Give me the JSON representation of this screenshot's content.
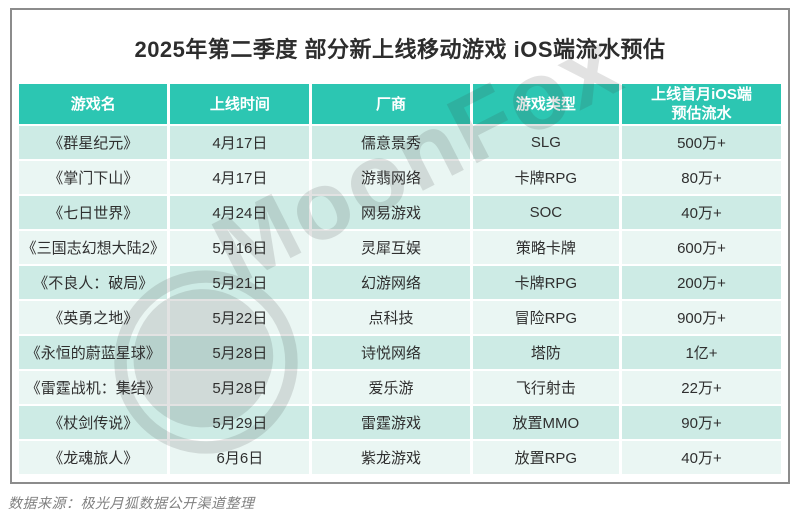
{
  "title": "2025年第二季度 部分新上线移动游戏 iOS端流水预估",
  "source_note": "数据来源：极光月狐数据公开渠道整理",
  "watermark": {
    "brand_text": "MoonFox",
    "logo": "moonfox-moon-logo"
  },
  "colors": {
    "header_bg": "#2cc6b2",
    "row_odd_bg": "#cdebe5",
    "row_even_bg": "#eaf6f3",
    "header_text": "#ffffff",
    "cell_text": "#2f2f2f",
    "card_border": "#8c8c8c",
    "watermark_gray": "#3a3a3a",
    "source_text": "#808080"
  },
  "chart_data": {
    "type": "table",
    "title": "2025年第二季度 部分新上线移动游戏 iOS端流水预估",
    "columns": [
      "游戏名",
      "上线时间",
      "厂商",
      "游戏类型",
      "上线首月iOS端预估流水"
    ],
    "column_headers_display": [
      "游戏名",
      "上线时间",
      "厂商",
      "游戏类型",
      "上线首月iOS端\n预估流水"
    ],
    "rows": [
      [
        "《群星纪元》",
        "4月17日",
        "儒意景秀",
        "SLG",
        "500万+"
      ],
      [
        "《掌门下山》",
        "4月17日",
        "游翡网络",
        "卡牌RPG",
        "80万+"
      ],
      [
        "《七日世界》",
        "4月24日",
        "网易游戏",
        "SOC",
        "40万+"
      ],
      [
        "《三国志幻想大陆2》",
        "5月16日",
        "灵犀互娱",
        "策略卡牌",
        "600万+"
      ],
      [
        "《不良人：破局》",
        "5月21日",
        "幻游网络",
        "卡牌RPG",
        "200万+"
      ],
      [
        "《英勇之地》",
        "5月22日",
        "点科技",
        "冒险RPG",
        "900万+"
      ],
      [
        "《永恒的蔚蓝星球》",
        "5月28日",
        "诗悦网络",
        "塔防",
        "1亿+"
      ],
      [
        "《雷霆战机：集结》",
        "5月28日",
        "爱乐游",
        "飞行射击",
        "22万+"
      ],
      [
        "《杖剑传说》",
        "5月29日",
        "雷霆游戏",
        "放置MMO",
        "90万+"
      ],
      [
        "《龙魂旅人》",
        "6月6日",
        "紫龙游戏",
        "放置RPG",
        "40万+"
      ]
    ]
  }
}
